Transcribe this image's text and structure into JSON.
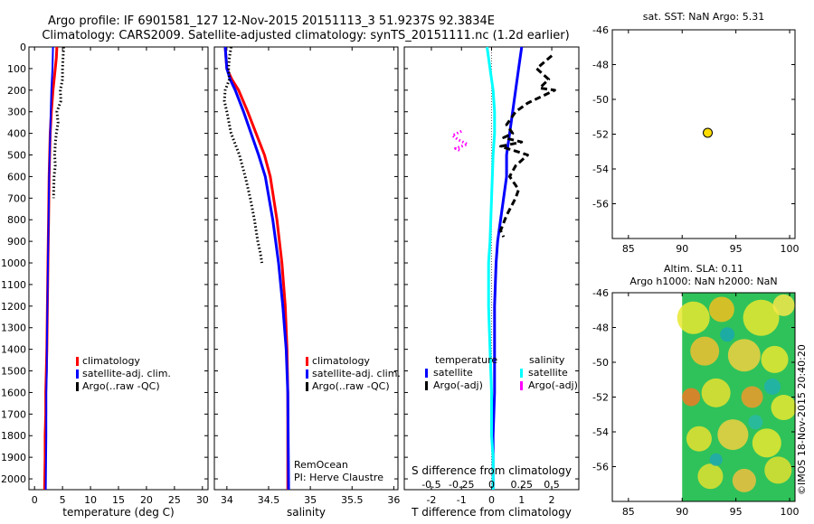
{
  "header": {
    "line1": "Argo profile: IF 6901581_127 12-Nov-2015 20151113_3 51.9237S 92.3834E",
    "line2": "Climatology: CARS2009. Satellite-adjusted climatology: synTS_20151111.nc (1.2d earlier)"
  },
  "colors": {
    "climatology": "#ff0000",
    "satellite": "#0000ff",
    "argo": "#000000",
    "sal_satellite": "#00ffff",
    "sal_argo": "#ff00ff",
    "float_marker": "#ffdd00"
  },
  "watermark": "©IMOS 18-Nov-2015 20:40:20",
  "chart_data": [
    {
      "id": "temperature",
      "type": "line",
      "xlabel": "temperature (deg C)",
      "xlim": [
        -1,
        31
      ],
      "xticks": [
        "0",
        "5",
        "10",
        "15",
        "20",
        "25",
        "30"
      ],
      "xtickvals": [
        0,
        5,
        10,
        15,
        20,
        25,
        30
      ],
      "ylim": [
        0,
        2050
      ],
      "yticks": [
        "0",
        "100",
        "200",
        "300",
        "400",
        "500",
        "600",
        "700",
        "800",
        "900",
        "1000",
        "1100",
        "1200",
        "1300",
        "1400",
        "1500",
        "1600",
        "1700",
        "1800",
        "1900",
        "2000"
      ],
      "ytickvals": [
        0,
        100,
        200,
        300,
        400,
        500,
        600,
        700,
        800,
        900,
        1000,
        1100,
        1200,
        1300,
        1400,
        1500,
        1600,
        1700,
        1800,
        1900,
        2000
      ],
      "legend": [
        "climatology",
        "satellite-adj. clim.",
        "Argo(..raw -QC)"
      ],
      "series": [
        {
          "name": "climatology",
          "color": "#ff0000",
          "style": "solid",
          "width": 3,
          "x": [
            4.0,
            3.9,
            3.7,
            3.3,
            3.0,
            2.8,
            2.7,
            2.6,
            2.5,
            2.4,
            2.3,
            2.2,
            2.1,
            2.0,
            2.0,
            1.9,
            1.9,
            1.8
          ],
          "y": [
            0,
            50,
            100,
            200,
            300,
            400,
            500,
            600,
            800,
            1000,
            1200,
            1400,
            1500,
            1600,
            1700,
            1800,
            1900,
            2050
          ]
        },
        {
          "name": "satellite-adj. clim.",
          "color": "#0000ff",
          "style": "solid",
          "width": 2,
          "x": [
            3.3,
            3.2,
            3.0,
            2.9,
            2.8,
            2.7,
            2.6,
            2.5,
            2.4,
            2.3,
            2.2,
            2.2,
            2.1,
            2.1,
            2.0
          ],
          "y": [
            0,
            100,
            200,
            300,
            400,
            500,
            600,
            800,
            1000,
            1200,
            1400,
            1500,
            1600,
            1800,
            2050
          ]
        },
        {
          "name": "Argo(..raw -QC)",
          "color": "#000000",
          "style": "dot",
          "width": 3,
          "x": [
            5.2,
            5.1,
            5.0,
            5.0,
            4.6,
            4.7,
            4.0,
            4.2,
            3.9,
            3.7,
            3.6,
            3.7,
            3.5,
            3.4
          ],
          "y": [
            0,
            50,
            100,
            150,
            200,
            250,
            300,
            350,
            400,
            450,
            500,
            550,
            600,
            700
          ]
        }
      ]
    },
    {
      "id": "salinity",
      "type": "line",
      "xlabel": "salinity",
      "xlim": [
        33.85,
        36.05
      ],
      "xticks": [
        "34",
        "34.5",
        "35",
        "35.5",
        "36"
      ],
      "xtickvals": [
        34,
        34.5,
        35,
        35.5,
        36
      ],
      "ylim": [
        0,
        2050
      ],
      "legend": [
        "climatology",
        "satellite-adj. clim.",
        "Argo(..raw -QC)"
      ],
      "text_lines": [
        "RemOcean",
        "PI: Herve Claustre"
      ],
      "series": [
        {
          "name": "climatology",
          "color": "#ff0000",
          "style": "solid",
          "width": 3,
          "x": [
            33.98,
            33.99,
            34.0,
            34.06,
            34.14,
            34.25,
            34.35,
            34.45,
            34.52,
            34.6,
            34.66,
            34.7,
            34.72,
            34.73,
            34.73
          ],
          "y": [
            0,
            50,
            100,
            150,
            200,
            300,
            400,
            500,
            600,
            800,
            1000,
            1200,
            1400,
            1600,
            2050
          ]
        },
        {
          "name": "satellite-adj. clim.",
          "color": "#0000ff",
          "style": "solid",
          "width": 3,
          "x": [
            33.98,
            33.99,
            34.0,
            34.04,
            34.1,
            34.2,
            34.29,
            34.38,
            34.46,
            34.55,
            34.62,
            34.67,
            34.71,
            34.73,
            34.74
          ],
          "y": [
            0,
            50,
            100,
            150,
            200,
            300,
            400,
            500,
            600,
            800,
            1000,
            1200,
            1400,
            1600,
            2050
          ]
        },
        {
          "name": "Argo(..raw -QC)",
          "color": "#000000",
          "style": "dot",
          "width": 3,
          "x": [
            34.05,
            34.03,
            34.02,
            34.03,
            33.98,
            33.97,
            34.0,
            34.05,
            34.1,
            34.15,
            34.22,
            34.28,
            34.33,
            34.37,
            34.4,
            34.42
          ],
          "y": [
            0,
            50,
            100,
            150,
            200,
            250,
            300,
            400,
            450,
            500,
            600,
            700,
            800,
            900,
            950,
            1000
          ]
        }
      ]
    },
    {
      "id": "difference",
      "type": "line",
      "xlabel": "T difference from climatology",
      "x2label": "S difference from climatology",
      "xlim": [
        -2.9,
        2.9
      ],
      "xticks": [
        "-2",
        "-1",
        "0",
        "1",
        "2"
      ],
      "xtickvals": [
        -2,
        -1,
        0,
        1,
        2
      ],
      "x2ticks": [
        "-0.5",
        "-0.25",
        "0",
        "0.25",
        "0.5"
      ],
      "x2tickvals": [
        -2,
        -1,
        0,
        1,
        2
      ],
      "ylim": [
        0,
        2050
      ],
      "legend_titles": [
        "temperature",
        "salinity"
      ],
      "legend": [
        "satellite",
        "Argo(-adj)",
        "satellite",
        "Argo(-adj)"
      ],
      "series": [
        {
          "name": "satellite",
          "quantity": "temperature",
          "color": "#0000ff",
          "style": "solid",
          "width": 3,
          "x": [
            1.0,
            0.9,
            0.8,
            0.7,
            0.6,
            0.5,
            0.5,
            0.4,
            0.3,
            0.2,
            0.15,
            0.1,
            0.1,
            0.1,
            0.05,
            0.05
          ],
          "y": [
            0,
            100,
            200,
            300,
            400,
            500,
            600,
            700,
            800,
            900,
            1000,
            1200,
            1400,
            1600,
            1800,
            2050
          ]
        },
        {
          "name": "Argo(-adj)",
          "quantity": "temperature",
          "color": "#000000",
          "style": "dash",
          "width": 3,
          "x": [
            2.0,
            1.5,
            1.9,
            1.6,
            2.1,
            1.8,
            1.2,
            0.8,
            0.5,
            0.6,
            0.7,
            0.4,
            1.0,
            0.3,
            1.2,
            0.8,
            0.6,
            0.9,
            0.8,
            0.5,
            0.3,
            0.4
          ],
          "y": [
            40,
            100,
            150,
            190,
            200,
            220,
            260,
            300,
            360,
            380,
            400,
            420,
            440,
            460,
            500,
            550,
            600,
            660,
            700,
            780,
            850,
            880
          ]
        },
        {
          "name": "satellite",
          "quantity": "salinity",
          "color": "#00ffff",
          "style": "solid",
          "width": 3,
          "x": [
            -0.15,
            -0.05,
            0.05,
            0.1,
            0.1,
            0.05,
            0.0,
            -0.05,
            -0.1,
            -0.1,
            -0.05,
            0.0,
            0.0,
            0.05,
            0.05
          ],
          "y": [
            0,
            100,
            200,
            300,
            400,
            500,
            700,
            900,
            1000,
            1200,
            1400,
            1600,
            1800,
            1900,
            2050
          ]
        },
        {
          "name": "Argo(-adj)",
          "quantity": "salinity",
          "color": "#ff00ff",
          "style": "dot",
          "width": 3,
          "x": [
            -1.0,
            -1.3,
            -1.1,
            -0.8,
            -1.2,
            -1.05
          ],
          "y": [
            390,
            410,
            430,
            450,
            470,
            480
          ]
        }
      ]
    },
    {
      "id": "map_sst",
      "type": "scatter",
      "title": "sat. SST: NaN Argo: 5.31",
      "xlim": [
        83.5,
        100.5
      ],
      "ylim": [
        -58,
        -46
      ],
      "xticks": [
        "85",
        "90",
        "95",
        "100"
      ],
      "xtickvals": [
        85,
        90,
        95,
        100
      ],
      "yticks": [
        "-46",
        "-48",
        "-50",
        "-52",
        "-54",
        "-56"
      ],
      "ytickvals": [
        -46,
        -48,
        -50,
        -52,
        -54,
        -56
      ],
      "points": [
        {
          "x": 92.38,
          "y": -51.92
        }
      ]
    },
    {
      "id": "map_sla",
      "type": "heatmap",
      "title": "Altim. SLA: 0.11",
      "subtitle": "Argo h1000: NaN h2000: NaN",
      "xlim": [
        83.5,
        100.5
      ],
      "ylim": [
        -58,
        -46
      ],
      "xticks": [
        "85",
        "90",
        "95",
        "100"
      ],
      "xtickvals": [
        85,
        90,
        95,
        100
      ],
      "yticks": [
        "-46",
        "-48",
        "-50",
        "-52",
        "-54",
        "-56"
      ],
      "ytickvals": [
        -46,
        -48,
        -50,
        -52,
        -54,
        -56
      ],
      "field_lon_range": [
        90,
        100.5
      ]
    }
  ]
}
